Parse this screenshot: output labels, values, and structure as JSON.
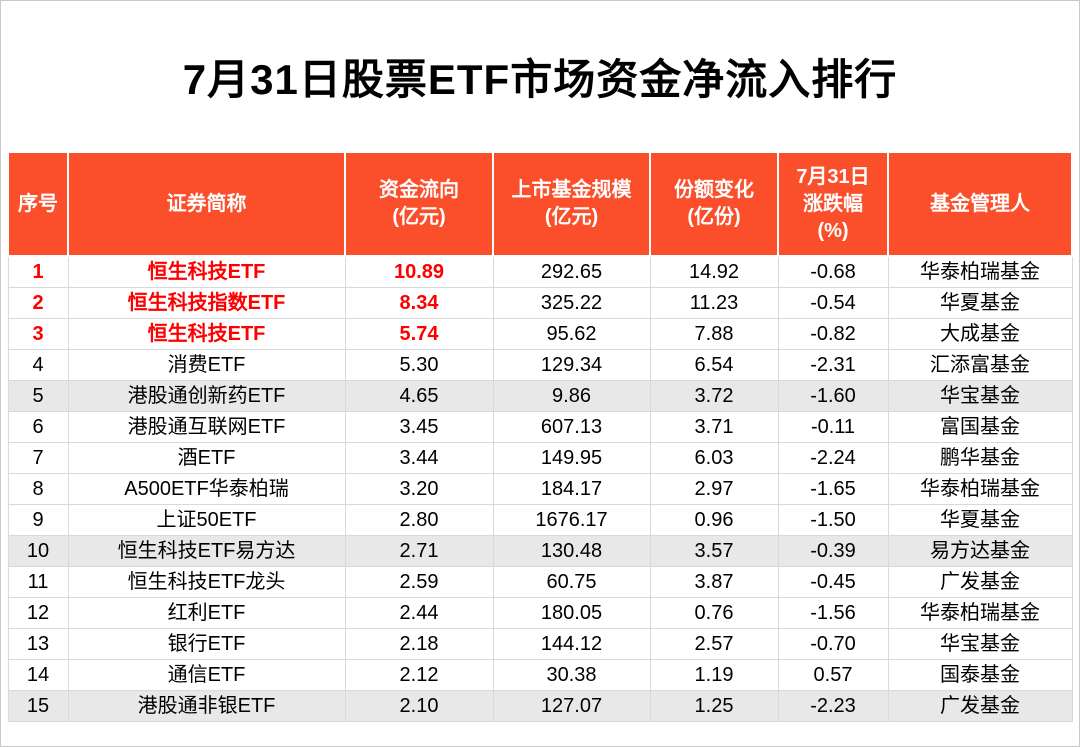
{
  "title": "7月31日股票ETF市场资金净流入排行",
  "colors": {
    "header_bg": "#fb4f2c",
    "highlight_text": "#ff0000",
    "stripe_bg": "#e8e8e8",
    "grid_line": "#d9d9d9"
  },
  "table": {
    "headers": [
      {
        "lines": [
          "序号"
        ]
      },
      {
        "lines": [
          "证券简称"
        ]
      },
      {
        "lines": [
          "资金流向",
          "(亿元)"
        ]
      },
      {
        "lines": [
          "上市基金规模",
          "(亿元)"
        ]
      },
      {
        "lines": [
          "份额变化",
          "(亿份)"
        ]
      },
      {
        "lines": [
          "7月31日",
          "涨跌幅",
          "(%)"
        ]
      },
      {
        "lines": [
          "基金管理人"
        ]
      }
    ],
    "rows": [
      {
        "rank": "1",
        "name": "恒生科技ETF",
        "flow": "10.89",
        "scale": "292.65",
        "share_change": "14.92",
        "change_pct": "-0.68",
        "manager": "华泰柏瑞基金",
        "highlight": true,
        "stripe": false
      },
      {
        "rank": "2",
        "name": "恒生科技指数ETF",
        "flow": "8.34",
        "scale": "325.22",
        "share_change": "11.23",
        "change_pct": "-0.54",
        "manager": "华夏基金",
        "highlight": true,
        "stripe": false
      },
      {
        "rank": "3",
        "name": "恒生科技ETF",
        "flow": "5.74",
        "scale": "95.62",
        "share_change": "7.88",
        "change_pct": "-0.82",
        "manager": "大成基金",
        "highlight": true,
        "stripe": false
      },
      {
        "rank": "4",
        "name": "消费ETF",
        "flow": "5.30",
        "scale": "129.34",
        "share_change": "6.54",
        "change_pct": "-2.31",
        "manager": "汇添富基金",
        "highlight": false,
        "stripe": false
      },
      {
        "rank": "5",
        "name": "港股通创新药ETF",
        "flow": "4.65",
        "scale": "9.86",
        "share_change": "3.72",
        "change_pct": "-1.60",
        "manager": "华宝基金",
        "highlight": false,
        "stripe": true
      },
      {
        "rank": "6",
        "name": "港股通互联网ETF",
        "flow": "3.45",
        "scale": "607.13",
        "share_change": "3.71",
        "change_pct": "-0.11",
        "manager": "富国基金",
        "highlight": false,
        "stripe": false
      },
      {
        "rank": "7",
        "name": "酒ETF",
        "flow": "3.44",
        "scale": "149.95",
        "share_change": "6.03",
        "change_pct": "-2.24",
        "manager": "鹏华基金",
        "highlight": false,
        "stripe": false
      },
      {
        "rank": "8",
        "name": "A500ETF华泰柏瑞",
        "flow": "3.20",
        "scale": "184.17",
        "share_change": "2.97",
        "change_pct": "-1.65",
        "manager": "华泰柏瑞基金",
        "highlight": false,
        "stripe": false
      },
      {
        "rank": "9",
        "name": "上证50ETF",
        "flow": "2.80",
        "scale": "1676.17",
        "share_change": "0.96",
        "change_pct": "-1.50",
        "manager": "华夏基金",
        "highlight": false,
        "stripe": false
      },
      {
        "rank": "10",
        "name": "恒生科技ETF易方达",
        "flow": "2.71",
        "scale": "130.48",
        "share_change": "3.57",
        "change_pct": "-0.39",
        "manager": "易方达基金",
        "highlight": false,
        "stripe": true
      },
      {
        "rank": "11",
        "name": "恒生科技ETF龙头",
        "flow": "2.59",
        "scale": "60.75",
        "share_change": "3.87",
        "change_pct": "-0.45",
        "manager": "广发基金",
        "highlight": false,
        "stripe": false
      },
      {
        "rank": "12",
        "name": "红利ETF",
        "flow": "2.44",
        "scale": "180.05",
        "share_change": "0.76",
        "change_pct": "-1.56",
        "manager": "华泰柏瑞基金",
        "highlight": false,
        "stripe": false
      },
      {
        "rank": "13",
        "name": "银行ETF",
        "flow": "2.18",
        "scale": "144.12",
        "share_change": "2.57",
        "change_pct": "-0.70",
        "manager": "华宝基金",
        "highlight": false,
        "stripe": false
      },
      {
        "rank": "14",
        "name": "通信ETF",
        "flow": "2.12",
        "scale": "30.38",
        "share_change": "1.19",
        "change_pct": "0.57",
        "manager": "国泰基金",
        "highlight": false,
        "stripe": false
      },
      {
        "rank": "15",
        "name": "港股通非银ETF",
        "flow": "2.10",
        "scale": "127.07",
        "share_change": "1.25",
        "change_pct": "-2.23",
        "manager": "广发基金",
        "highlight": false,
        "stripe": true
      }
    ]
  }
}
